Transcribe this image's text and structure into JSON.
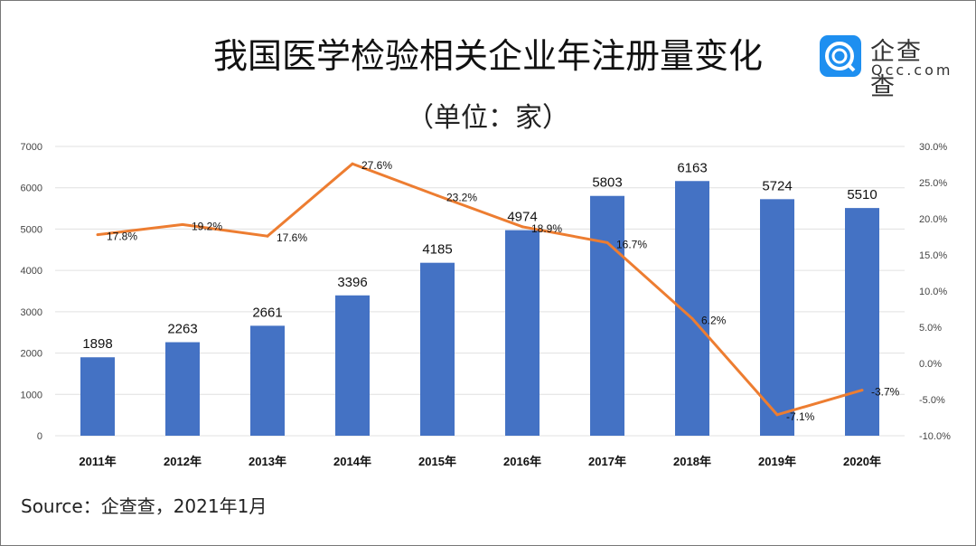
{
  "chart_data": {
    "type": "bar+line",
    "title": "我国医学检验相关企业年注册量变化",
    "subtitle": "（单位：家）",
    "categories": [
      "2011年",
      "2012年",
      "2013年",
      "2014年",
      "2015年",
      "2016年",
      "2017年",
      "2018年",
      "2019年",
      "2020年"
    ],
    "series": [
      {
        "type": "bar",
        "axis": "left",
        "values": [
          1898,
          2263,
          2661,
          3396,
          4185,
          4974,
          5803,
          6163,
          5724,
          5510
        ],
        "color": "#4472c4"
      },
      {
        "type": "line",
        "axis": "right",
        "values": [
          17.8,
          19.2,
          17.6,
          27.6,
          23.2,
          18.9,
          16.7,
          6.2,
          -7.1,
          -3.7
        ],
        "labels": [
          "17.8%",
          "19.2%",
          "17.6%",
          "27.6%",
          "23.2%",
          "18.9%",
          "16.7%",
          "6.2%",
          "-7.1%",
          "-3.7%"
        ],
        "color": "#ed7d31"
      }
    ],
    "ylim": [
      0,
      7000
    ],
    "yticks": [
      "0",
      "1000",
      "2000",
      "3000",
      "4000",
      "5000",
      "6000",
      "7000"
    ],
    "y2lim": [
      -10,
      30
    ],
    "y2ticks": [
      "-10.0%",
      "-5.0%",
      "0.0%",
      "5.0%",
      "10.0%",
      "15.0%",
      "20.0%",
      "25.0%",
      "30.0%"
    ],
    "grid": true
  },
  "source": "Source：企查查，2021年1月",
  "logo": {
    "name": "企查查",
    "url": "Qcc.com"
  }
}
